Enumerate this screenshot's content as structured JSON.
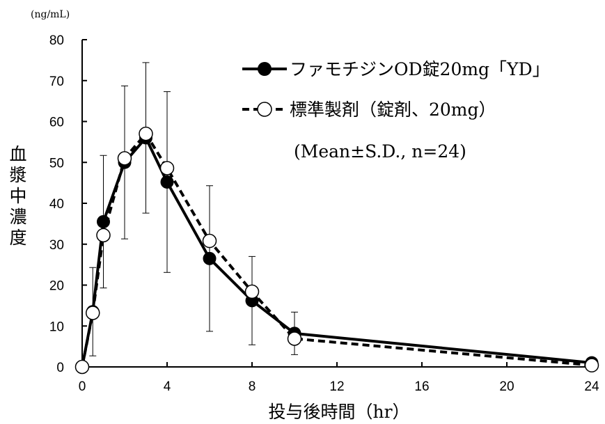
{
  "chart_data": {
    "type": "line",
    "y_unit": "(ng/mL)",
    "xlabel": "投与後時間（hr）",
    "ylabel": "血漿中濃度",
    "annotation": "(Mean±S.D., n=24)",
    "xlim": [
      0,
      24
    ],
    "ylim": [
      0,
      80
    ],
    "x_ticks": [
      0,
      4,
      8,
      12,
      16,
      20,
      24
    ],
    "y_ticks": [
      0,
      10,
      20,
      30,
      40,
      50,
      60,
      70,
      80
    ],
    "x_tick_labels": [
      "0",
      "4",
      "8",
      "12",
      "16",
      "20",
      "24"
    ],
    "y_tick_labels": [
      "0",
      "10",
      "20",
      "30",
      "40",
      "50",
      "60",
      "70",
      "80"
    ],
    "grid": false,
    "legend_position": "top-right",
    "series": [
      {
        "name": "ファモチジンOD錠20mg「YD」",
        "style": "solid",
        "marker": "filled-circle",
        "color": "#000000",
        "x": [
          0,
          0.5,
          1,
          2,
          3,
          4,
          6,
          8,
          10,
          24
        ],
        "y": [
          0,
          13.5,
          35.5,
          50,
          56,
          45.2,
          26.5,
          16.2,
          8.2,
          1
        ],
        "error": [
          0,
          10.8,
          16.2,
          18.7,
          18.4,
          22.1,
          17.8,
          10.8,
          5.2,
          0.8
        ]
      },
      {
        "name": "標準製剤（錠剤、20mg）",
        "style": "dashed",
        "marker": "open-circle",
        "color": "#000000",
        "x": [
          0,
          0.5,
          1,
          2,
          3,
          4,
          6,
          8,
          10,
          24
        ],
        "y": [
          0,
          13.2,
          32.2,
          51,
          57,
          48.6,
          30.8,
          18.4,
          6.9,
          0.4
        ],
        "error": [
          0,
          0,
          0,
          0,
          0,
          0,
          0,
          0,
          0,
          0
        ]
      }
    ]
  }
}
